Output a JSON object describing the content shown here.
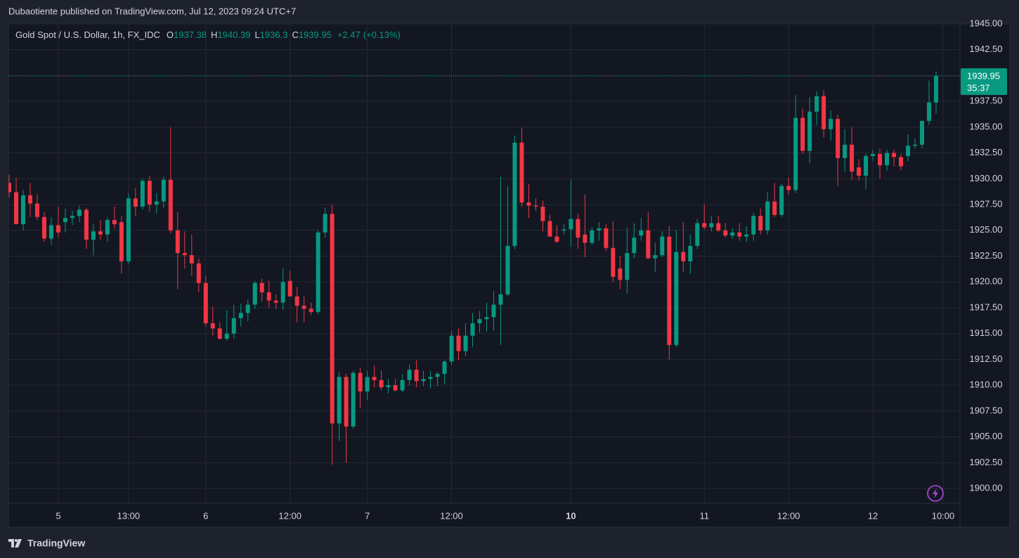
{
  "chart_data": {
    "type": "candlestick",
    "title": "Dubaotiente published on TradingView.com, Jul 12, 2023 09:24 UTC+7",
    "symbol": "Gold Spot / U.S. Dollar, 1h, FX_IDC",
    "ohlc_labels": [
      "O",
      "H",
      "L",
      "C"
    ],
    "change": {
      "value": 2.47,
      "label": "+2.47"
    },
    "change_pct": {
      "value": 0.13,
      "label": "(+0.13%)"
    },
    "countdown": "35:37",
    "brand": "TradingView",
    "up_color": "#089981",
    "down_color": "#f23645",
    "grid": true,
    "candles": [
      [
        1929.6,
        1930.4,
        1928.2,
        1928.7
      ],
      [
        1928.7,
        1930.1,
        1925.6,
        1925.6
      ],
      [
        1925.6,
        1928.9,
        1925.0,
        1928.4
      ],
      [
        1928.4,
        1929.6,
        1926.3,
        1927.6
      ],
      [
        1927.6,
        1928.5,
        1926.0,
        1926.3
      ],
      [
        1926.3,
        1926.8,
        1923.9,
        1924.2
      ],
      [
        1924.2,
        1926.3,
        1923.6,
        1925.5
      ],
      [
        1925.5,
        1927.3,
        1924.3,
        1924.8
      ],
      [
        1925.8,
        1927.1,
        1924.8,
        1926.2
      ],
      [
        1926.2,
        1926.9,
        1925.5,
        1926.4
      ],
      [
        1926.4,
        1927.4,
        1925.8,
        1927.0
      ],
      [
        1927.0,
        1927.2,
        1923.2,
        1924.1
      ],
      [
        1924.1,
        1925.6,
        1922.6,
        1924.9
      ],
      [
        1924.9,
        1926.0,
        1924.1,
        1924.6
      ],
      [
        1924.6,
        1926.3,
        1923.9,
        1926.0
      ],
      [
        1926.0,
        1927.3,
        1925.2,
        1925.6
      ],
      [
        1925.8,
        1926.4,
        1920.8,
        1922.0
      ],
      [
        1922.0,
        1928.6,
        1921.7,
        1928.1
      ],
      [
        1928.1,
        1929.1,
        1926.4,
        1927.3
      ],
      [
        1927.3,
        1930.0,
        1927.0,
        1929.8
      ],
      [
        1929.8,
        1930.3,
        1926.8,
        1927.5
      ],
      [
        1927.5,
        1928.6,
        1926.6,
        1927.8
      ],
      [
        1927.8,
        1930.2,
        1927.2,
        1929.9
      ],
      [
        1929.9,
        1935.0,
        1924.7,
        1925.0
      ],
      [
        1925.0,
        1926.8,
        1919.3,
        1922.8
      ],
      [
        1922.8,
        1924.9,
        1921.3,
        1922.6
      ],
      [
        1922.6,
        1924.6,
        1920.6,
        1921.8
      ],
      [
        1921.8,
        1922.3,
        1919.0,
        1919.9
      ],
      [
        1919.9,
        1920.6,
        1915.7,
        1916.0
      ],
      [
        1916.0,
        1917.6,
        1914.8,
        1915.5
      ],
      [
        1915.5,
        1916.1,
        1914.4,
        1914.5
      ],
      [
        1914.5,
        1917.3,
        1914.3,
        1915.0
      ],
      [
        1915.0,
        1917.8,
        1914.5,
        1916.5
      ],
      [
        1916.5,
        1917.9,
        1915.7,
        1917.0
      ],
      [
        1917.0,
        1918.3,
        1916.2,
        1917.8
      ],
      [
        1917.8,
        1920.1,
        1917.4,
        1919.9
      ],
      [
        1919.9,
        1920.3,
        1918.1,
        1919.0
      ],
      [
        1919.0,
        1920.1,
        1917.5,
        1918.2
      ],
      [
        1918.2,
        1918.8,
        1917.4,
        1918.0
      ],
      [
        1918.0,
        1921.3,
        1917.3,
        1920.0
      ],
      [
        1920.1,
        1921.1,
        1918.6,
        1918.6
      ],
      [
        1918.6,
        1919.5,
        1916.1,
        1917.7
      ],
      [
        1917.7,
        1918.6,
        1916.1,
        1917.4
      ],
      [
        1917.4,
        1918.0,
        1916.8,
        1917.1
      ],
      [
        1917.1,
        1925.0,
        1916.9,
        1924.8
      ],
      [
        1924.8,
        1927.2,
        1924.3,
        1926.6
      ],
      [
        1926.6,
        1927.5,
        1902.3,
        1906.3
      ],
      [
        1906.3,
        1911.3,
        1904.6,
        1910.8
      ],
      [
        1910.8,
        1911.1,
        1902.5,
        1906.0
      ],
      [
        1906.0,
        1911.4,
        1905.8,
        1911.2
      ],
      [
        1911.2,
        1911.7,
        1907.8,
        1909.4
      ],
      [
        1909.4,
        1911.4,
        1908.6,
        1910.8
      ],
      [
        1910.8,
        1911.9,
        1909.8,
        1910.5
      ],
      [
        1910.5,
        1911.4,
        1909.5,
        1909.8
      ],
      [
        1909.8,
        1910.6,
        1909.2,
        1910.0
      ],
      [
        1910.0,
        1910.6,
        1909.4,
        1909.5
      ],
      [
        1909.5,
        1911.1,
        1909.3,
        1910.5
      ],
      [
        1910.5,
        1912.0,
        1910.0,
        1911.5
      ],
      [
        1911.5,
        1912.4,
        1909.8,
        1910.4
      ],
      [
        1910.4,
        1911.4,
        1909.9,
        1910.6
      ],
      [
        1910.6,
        1911.4,
        1909.7,
        1910.8
      ],
      [
        1910.8,
        1911.3,
        1909.9,
        1911.1
      ],
      [
        1911.1,
        1912.4,
        1910.1,
        1912.3
      ],
      [
        1912.3,
        1915.3,
        1912.0,
        1914.8
      ],
      [
        1914.8,
        1915.5,
        1912.4,
        1913.3
      ],
      [
        1913.3,
        1916.0,
        1912.8,
        1914.8
      ],
      [
        1914.8,
        1917.0,
        1913.7,
        1916.0
      ],
      [
        1916.0,
        1917.2,
        1915.1,
        1916.4
      ],
      [
        1916.4,
        1918.0,
        1915.2,
        1916.6
      ],
      [
        1916.6,
        1919.1,
        1915.3,
        1917.8
      ],
      [
        1917.8,
        1930.2,
        1913.9,
        1918.8
      ],
      [
        1918.8,
        1929.3,
        1918.6,
        1923.5
      ],
      [
        1923.5,
        1934.2,
        1923.2,
        1933.5
      ],
      [
        1933.5,
        1934.9,
        1927.3,
        1927.7
      ],
      [
        1927.7,
        1929.5,
        1926.2,
        1927.4
      ],
      [
        1927.4,
        1928.1,
        1926.9,
        1927.3
      ],
      [
        1927.3,
        1927.9,
        1924.9,
        1925.9
      ],
      [
        1925.9,
        1926.5,
        1924.4,
        1924.4
      ],
      [
        1924.4,
        1925.5,
        1923.8,
        1923.9
      ],
      [
        1925.0,
        1925.6,
        1924.6,
        1925.1
      ],
      [
        1925.1,
        1929.9,
        1923.4,
        1926.1
      ],
      [
        1926.1,
        1926.6,
        1923.2,
        1924.3
      ],
      [
        1924.6,
        1928.5,
        1922.4,
        1923.8
      ],
      [
        1923.8,
        1925.3,
        1923.6,
        1925.0
      ],
      [
        1925.0,
        1925.8,
        1924.0,
        1925.2
      ],
      [
        1925.2,
        1925.6,
        1923.0,
        1923.3
      ],
      [
        1923.3,
        1925.9,
        1920.0,
        1920.5
      ],
      [
        1921.3,
        1922.5,
        1919.3,
        1920.2
      ],
      [
        1920.2,
        1925.3,
        1918.9,
        1922.8
      ],
      [
        1922.8,
        1925.7,
        1922.3,
        1924.3
      ],
      [
        1924.5,
        1926.2,
        1924.0,
        1925.0
      ],
      [
        1925.0,
        1926.8,
        1922.2,
        1922.3
      ],
      [
        1922.3,
        1923.8,
        1921.0,
        1922.6
      ],
      [
        1922.6,
        1924.9,
        1922.4,
        1924.4
      ],
      [
        1924.4,
        1925.4,
        1912.5,
        1913.9
      ],
      [
        1913.9,
        1925.0,
        1913.7,
        1922.9
      ],
      [
        1922.9,
        1925.8,
        1921.0,
        1922.0
      ],
      [
        1922.0,
        1924.6,
        1920.8,
        1923.5
      ],
      [
        1923.5,
        1926.1,
        1923.2,
        1925.7
      ],
      [
        1925.7,
        1927.5,
        1925.1,
        1925.3
      ],
      [
        1925.3,
        1926.4,
        1924.9,
        1925.7
      ],
      [
        1925.7,
        1926.4,
        1924.8,
        1925.0
      ],
      [
        1925.0,
        1925.7,
        1924.3,
        1924.5
      ],
      [
        1924.5,
        1925.2,
        1924.2,
        1924.8
      ],
      [
        1924.8,
        1925.7,
        1924.0,
        1924.4
      ],
      [
        1924.4,
        1925.4,
        1923.9,
        1924.6
      ],
      [
        1924.6,
        1926.7,
        1924.0,
        1926.4
      ],
      [
        1926.4,
        1927.1,
        1924.6,
        1925.0
      ],
      [
        1925.0,
        1928.7,
        1924.6,
        1927.8
      ],
      [
        1927.8,
        1929.6,
        1926.3,
        1926.5
      ],
      [
        1926.5,
        1929.5,
        1926.3,
        1929.3
      ],
      [
        1929.3,
        1930.1,
        1928.5,
        1928.9
      ],
      [
        1928.9,
        1938.1,
        1928.6,
        1935.9
      ],
      [
        1935.9,
        1936.8,
        1932.4,
        1932.7
      ],
      [
        1932.7,
        1937.9,
        1931.5,
        1936.5
      ],
      [
        1936.5,
        1938.5,
        1935.2,
        1938.0
      ],
      [
        1938.0,
        1938.6,
        1934.0,
        1934.8
      ],
      [
        1934.8,
        1936.6,
        1933.7,
        1935.8
      ],
      [
        1935.8,
        1936.2,
        1929.3,
        1932.0
      ],
      [
        1932.0,
        1934.8,
        1930.7,
        1933.3
      ],
      [
        1933.3,
        1935.0,
        1929.9,
        1930.7
      ],
      [
        1931.1,
        1931.9,
        1929.8,
        1930.3
      ],
      [
        1930.3,
        1932.4,
        1929.0,
        1932.2
      ],
      [
        1932.2,
        1932.8,
        1931.7,
        1932.4
      ],
      [
        1932.4,
        1932.9,
        1930.0,
        1931.3
      ],
      [
        1931.3,
        1932.8,
        1930.8,
        1932.5
      ],
      [
        1932.5,
        1932.8,
        1931.2,
        1932.1
      ],
      [
        1932.1,
        1932.4,
        1930.8,
        1931.2
      ],
      [
        1932.2,
        1934.3,
        1931.7,
        1933.2
      ],
      [
        1933.2,
        1933.9,
        1932.9,
        1933.3
      ],
      [
        1933.3,
        1935.6,
        1932.9,
        1935.6
      ],
      [
        1935.6,
        1939.5,
        1935.2,
        1937.4
      ],
      [
        1937.38,
        1940.39,
        1936.3,
        1939.95
      ]
    ],
    "xticks": [
      {
        "value": 7,
        "label": "5"
      },
      {
        "value": 17,
        "label": "13:00"
      },
      {
        "value": 28,
        "label": "6"
      },
      {
        "value": 40,
        "label": "12:00"
      },
      {
        "value": 51,
        "label": "7"
      },
      {
        "value": 63,
        "label": "12:00"
      },
      {
        "value": 80,
        "label": "10",
        "bold": true
      },
      {
        "value": 99,
        "label": "11"
      },
      {
        "value": 111,
        "label": "12:00"
      },
      {
        "value": 123,
        "label": "12"
      },
      {
        "value": 133,
        "label": "10:00"
      }
    ],
    "ylim": [
      1898.0,
      1945.0
    ],
    "yticks": [
      {
        "value": 1900,
        "label": "1900.00"
      },
      {
        "value": 1902.5,
        "label": "1902.50"
      },
      {
        "value": 1905,
        "label": "1905.00"
      },
      {
        "value": 1907.5,
        "label": "1907.50"
      },
      {
        "value": 1910,
        "label": "1910.00"
      },
      {
        "value": 1912.5,
        "label": "1912.50"
      },
      {
        "value": 1915,
        "label": "1915.00"
      },
      {
        "value": 1917.5,
        "label": "1917.50"
      },
      {
        "value": 1920,
        "label": "1920.00"
      },
      {
        "value": 1922.5,
        "label": "1922.50"
      },
      {
        "value": 1925,
        "label": "1925.00"
      },
      {
        "value": 1927.5,
        "label": "1927.50"
      },
      {
        "value": 1930,
        "label": "1930.00"
      },
      {
        "value": 1932.5,
        "label": "1932.50"
      },
      {
        "value": 1935,
        "label": "1935.00"
      },
      {
        "value": 1937.5,
        "label": "1937.50"
      },
      {
        "value": 1940,
        "label": "1940.00"
      },
      {
        "value": 1942.5,
        "label": "1942.50"
      },
      {
        "value": 1945,
        "label": "1945.00"
      }
    ]
  }
}
